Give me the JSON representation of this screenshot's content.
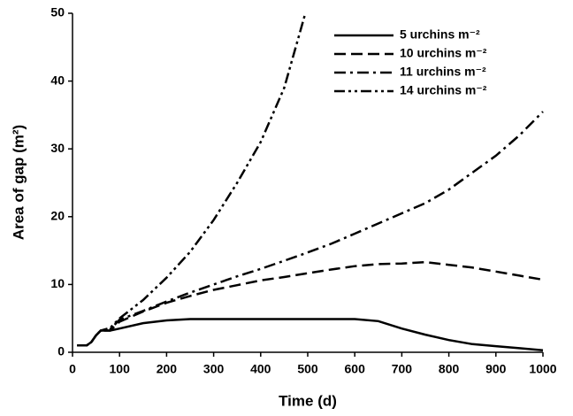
{
  "chart_data": {
    "type": "line",
    "xlabel": "Time (d)",
    "ylabel": "Area of gap (m²)",
    "x": [
      10,
      30,
      40,
      50,
      60,
      80,
      100,
      150,
      200,
      250,
      300,
      350,
      400,
      450,
      495,
      550,
      600,
      650,
      700,
      750,
      800,
      850,
      900,
      950,
      1000
    ],
    "series": [
      {
        "name": "5 urchins m⁻²",
        "color": "#000000",
        "dash": "none",
        "values": [
          1,
          1,
          1.5,
          2.5,
          3.2,
          3.2,
          3.5,
          4.3,
          4.7,
          4.9,
          4.9,
          4.9,
          4.9,
          4.9,
          4.9,
          4.9,
          4.9,
          4.6,
          3.5,
          2.6,
          1.8,
          1.2,
          0.9,
          0.6,
          0.3
        ]
      },
      {
        "name": "10 urchins m⁻²",
        "color": "#000000",
        "dash": "13 6",
        "values": [
          1,
          1,
          1.5,
          2.5,
          3.2,
          3.2,
          4.5,
          6,
          7.3,
          8.3,
          9.2,
          9.9,
          10.6,
          11.1,
          11.6,
          12.2,
          12.7,
          13,
          13.1,
          13.3,
          12.9,
          12.5,
          11.9,
          11.3,
          10.7
        ]
      },
      {
        "name": "11 urchins m⁻²",
        "color": "#000000",
        "dash": "13 5 3 5",
        "values": [
          1,
          1,
          1.5,
          2.5,
          3.2,
          3.4,
          4.8,
          6.1,
          7.5,
          8.8,
          10,
          11.2,
          12.3,
          13.5,
          14.6,
          16,
          17.5,
          19,
          20.5,
          22,
          24,
          26.5,
          29,
          32,
          35.5
        ]
      },
      {
        "name": "14 urchins m⁻²",
        "color": "#000000",
        "dash": "12 4 3 4 3 4",
        "values": [
          1,
          1,
          1.5,
          2.5,
          3.2,
          3.6,
          5,
          7.7,
          11,
          14.8,
          19.5,
          25,
          31,
          39,
          50,
          null,
          null,
          null,
          null,
          null,
          null,
          null,
          null,
          null,
          null
        ]
      }
    ],
    "xlim": [
      0,
      1000
    ],
    "xticks": [
      0,
      100,
      200,
      300,
      400,
      500,
      600,
      700,
      800,
      900,
      1000
    ],
    "ylim": [
      0,
      50
    ],
    "yticks": [
      0,
      10,
      20,
      30,
      40,
      50
    ],
    "grid": false,
    "legend": "upper right"
  }
}
